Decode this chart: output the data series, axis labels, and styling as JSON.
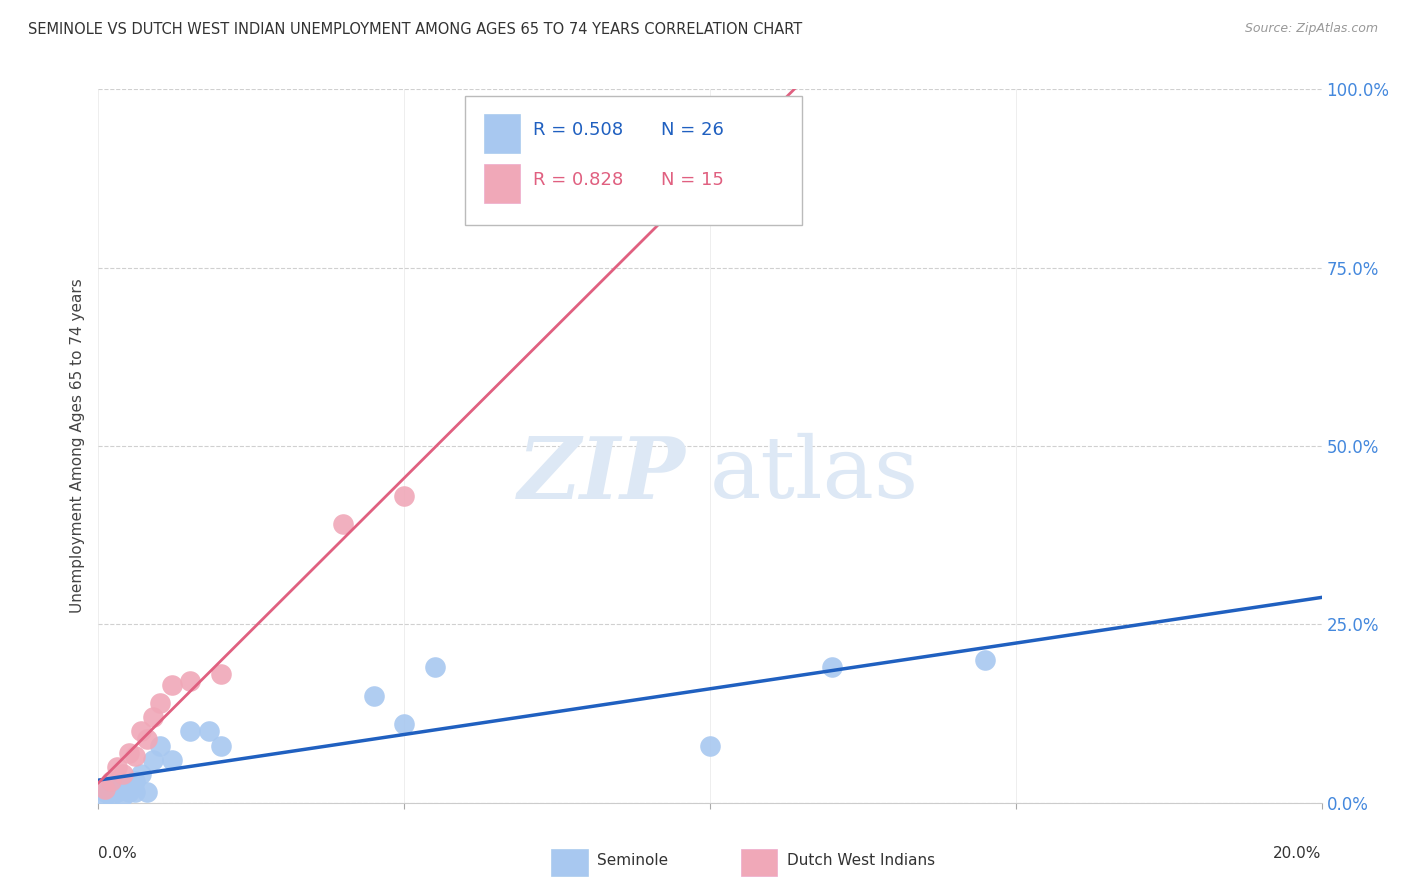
{
  "title": "SEMINOLE VS DUTCH WEST INDIAN UNEMPLOYMENT AMONG AGES 65 TO 74 YEARS CORRELATION CHART",
  "source": "Source: ZipAtlas.com",
  "ylabel": "Unemployment Among Ages 65 to 74 years",
  "ytick_labels": [
    "0.0%",
    "25.0%",
    "50.0%",
    "75.0%",
    "100.0%"
  ],
  "ytick_values": [
    0.0,
    0.25,
    0.5,
    0.75,
    1.0
  ],
  "xlim": [
    0.0,
    0.2
  ],
  "ylim": [
    0.0,
    1.0
  ],
  "seminole_R": "0.508",
  "seminole_N": "26",
  "dutch_R": "0.828",
  "dutch_N": "15",
  "seminole_color": "#a8c8f0",
  "dutch_color": "#f0a8b8",
  "seminole_line_color": "#2060c0",
  "dutch_line_color": "#e06080",
  "legend_label_1": "Seminole",
  "legend_label_2": "Dutch West Indians",
  "seminole_x": [
    0.001,
    0.001,
    0.002,
    0.002,
    0.003,
    0.003,
    0.004,
    0.004,
    0.005,
    0.005,
    0.006,
    0.006,
    0.007,
    0.008,
    0.009,
    0.01,
    0.012,
    0.015,
    0.018,
    0.02,
    0.045,
    0.05,
    0.055,
    0.1,
    0.12,
    0.145
  ],
  "seminole_y": [
    0.01,
    0.015,
    0.01,
    0.02,
    0.015,
    0.02,
    0.025,
    0.01,
    0.015,
    0.025,
    0.015,
    0.03,
    0.04,
    0.015,
    0.06,
    0.08,
    0.06,
    0.1,
    0.1,
    0.08,
    0.15,
    0.11,
    0.19,
    0.08,
    0.19,
    0.2
  ],
  "dutch_x": [
    0.001,
    0.002,
    0.003,
    0.004,
    0.005,
    0.006,
    0.007,
    0.008,
    0.009,
    0.01,
    0.012,
    0.015,
    0.02,
    0.04,
    0.05
  ],
  "dutch_y": [
    0.02,
    0.03,
    0.05,
    0.04,
    0.07,
    0.065,
    0.1,
    0.09,
    0.12,
    0.14,
    0.165,
    0.17,
    0.18,
    0.39,
    0.43
  ],
  "watermark_zip": "ZIP",
  "watermark_atlas": "atlas",
  "background_color": "#ffffff",
  "grid_color": "#d0d0d0"
}
